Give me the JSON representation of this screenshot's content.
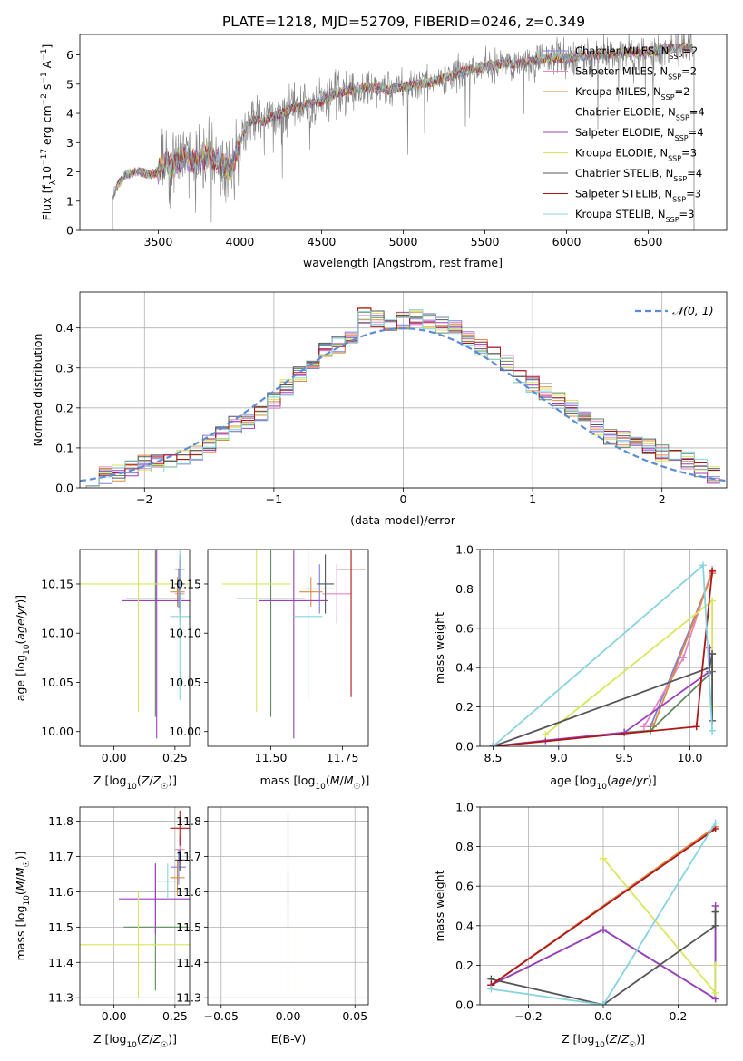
{
  "figure_title": "PLATE=1218, MJD=52709, FIBERID=0246, z=0.349",
  "colors": {
    "Chabrier MILES": "#7f7fd9",
    "Salpeter MILES": "#e687c2",
    "Kroupa MILES": "#d98c3f",
    "Chabrier ELODIE": "#5e8a5e",
    "Salpeter ELODIE": "#9b3fbf",
    "Kroupa ELODIE": "#d9e65a",
    "Chabrier STELIB": "#555555",
    "Salpeter STELIB": "#b01515",
    "Kroupa STELIB": "#86d4e0",
    "data": "#808080",
    "normal": "#5b8bd9"
  },
  "chart_data": [
    {
      "type": "line",
      "xlabel": "wavelength [Angstrom, rest frame]",
      "ylabel": "Flux [f_λ 10^-17 erg cm^-2 s^-1 A^-1]",
      "xlim": [
        3020,
        6980
      ],
      "ylim": [
        0,
        6.7
      ],
      "xticks": [
        3500,
        4000,
        4500,
        5000,
        5500,
        6000,
        6500
      ],
      "yticks": [
        0,
        1,
        2,
        3,
        4,
        5,
        6
      ],
      "legend_position": "right",
      "legend": [
        "Chabrier MILES, N_SSP=2",
        "Salpeter MILES, N_SSP=2",
        "Kroupa MILES, N_SSP=2",
        "Chabrier ELODIE, N_SSP=4",
        "Salpeter ELODIE, N_SSP=4",
        "Kroupa ELODIE, N_SSP=3",
        "Chabrier STELIB, N_SSP=4",
        "Salpeter STELIB, N_SSP=3",
        "Kroupa STELIB, N_SSP=3"
      ],
      "continuum": {
        "x": [
          3220,
          3260,
          3300,
          3350,
          3400,
          3450,
          3500,
          3550,
          3600,
          3650,
          3700,
          3750,
          3800,
          3850,
          3900,
          3950,
          4000,
          4050,
          4100,
          4150,
          4200,
          4300,
          4400,
          4500,
          4600,
          4700,
          4800,
          4900,
          5000,
          5100,
          5200,
          5300,
          5400,
          5500,
          5600,
          5700,
          5800,
          5900,
          6000,
          6100,
          6200,
          6300,
          6400,
          6500,
          6600,
          6700,
          6780
        ],
        "y": [
          1.2,
          1.6,
          1.9,
          2.0,
          2.0,
          1.9,
          2.0,
          2.3,
          2.2,
          2.5,
          2.4,
          2.3,
          2.6,
          2.4,
          2.2,
          2.1,
          3.0,
          3.7,
          3.8,
          3.7,
          3.9,
          4.1,
          4.3,
          4.4,
          4.7,
          4.8,
          4.9,
          4.8,
          4.9,
          5.0,
          5.1,
          5.3,
          5.5,
          5.6,
          5.7,
          5.7,
          5.8,
          5.9,
          5.9,
          5.95,
          6.0,
          6.05,
          6.1,
          6.1,
          6.2,
          6.25,
          6.25
        ]
      }
    },
    {
      "type": "histogram",
      "xlabel": "(data-model)/error",
      "ylabel": "Normed distribution",
      "xlim": [
        -2.5,
        2.5
      ],
      "ylim": [
        0,
        0.49
      ],
      "xticks": [
        -2,
        -1,
        0,
        1,
        2
      ],
      "yticks": [
        0.0,
        0.1,
        0.2,
        0.3,
        0.4
      ],
      "grid": true,
      "legend_position": "top-right",
      "legend": [
        "𝒩(0, 1)"
      ],
      "bin_centers": [
        -2.4,
        -2.3,
        -2.2,
        -2.1,
        -2.0,
        -1.9,
        -1.8,
        -1.7,
        -1.6,
        -1.5,
        -1.4,
        -1.3,
        -1.2,
        -1.1,
        -1.0,
        -0.9,
        -0.8,
        -0.7,
        -0.6,
        -0.5,
        -0.4,
        -0.3,
        -0.2,
        -0.1,
        0.0,
        0.1,
        0.2,
        0.3,
        0.4,
        0.5,
        0.6,
        0.7,
        0.8,
        0.9,
        1.0,
        1.1,
        1.2,
        1.3,
        1.4,
        1.5,
        1.6,
        1.7,
        1.8,
        1.9,
        2.0,
        2.1,
        2.2,
        2.3,
        2.4
      ],
      "bin_values": [
        0.02,
        0.03,
        0.04,
        0.05,
        0.06,
        0.06,
        0.07,
        0.08,
        0.09,
        0.11,
        0.13,
        0.16,
        0.17,
        0.19,
        0.22,
        0.25,
        0.28,
        0.31,
        0.34,
        0.36,
        0.37,
        0.43,
        0.42,
        0.4,
        0.42,
        0.43,
        0.42,
        0.41,
        0.4,
        0.38,
        0.35,
        0.33,
        0.31,
        0.28,
        0.26,
        0.24,
        0.22,
        0.2,
        0.18,
        0.15,
        0.13,
        0.12,
        0.11,
        0.1,
        0.09,
        0.08,
        0.07,
        0.05,
        0.03
      ],
      "normal_curve": {
        "mean": 0,
        "sigma": 1
      }
    },
    {
      "type": "scatter",
      "xlabel": "Z [log10(Z/Z☉)]",
      "ylabel": "age [log10(age/yr)]",
      "xlim": [
        -0.14,
        0.31
      ],
      "ylim": [
        9.985,
        10.185
      ],
      "xticks": [
        0.0,
        0.25
      ],
      "xticklabels": [
        "0.00",
        "0.25"
      ],
      "yticks": [
        10.0,
        10.05,
        10.1,
        10.15
      ],
      "yticklabels": [
        "10.00",
        "10.05",
        "10.10",
        "10.15"
      ],
      "points": [
        {
          "m": "Chabrier MILES",
          "x": 0.265,
          "xerr": 0.03,
          "y": 10.145,
          "yerr": 0.02
        },
        {
          "m": "Salpeter MILES",
          "x": 0.27,
          "xerr": 0.02,
          "y": 10.14,
          "yerr": 0.03
        },
        {
          "m": "Kroupa MILES",
          "x": 0.26,
          "xerr": 0.03,
          "y": 10.142,
          "yerr": 0.015
        },
        {
          "m": "Chabrier ELODIE",
          "x": 0.17,
          "xerr": 0.12,
          "y": 10.135,
          "yerr": 0.12
        },
        {
          "m": "Salpeter ELODIE",
          "x": 0.175,
          "xerr": 0.14,
          "y": 10.133,
          "yerr": 0.14
        },
        {
          "m": "Kroupa ELODIE",
          "x": 0.1,
          "xerr": 0.25,
          "y": 10.15,
          "yerr": 0.13
        },
        {
          "m": "Chabrier STELIB",
          "x": 0.27,
          "xerr": 0.02,
          "y": 10.15,
          "yerr": 0.03
        },
        {
          "m": "Salpeter STELIB",
          "x": 0.27,
          "xerr": 0.02,
          "y": 10.165,
          "yerr": 0.01
        },
        {
          "m": "Kroupa STELIB",
          "x": 0.27,
          "xerr": 0.04,
          "y": 10.117,
          "yerr": 0.085
        }
      ]
    },
    {
      "type": "scatter",
      "xlabel": "mass [log10(M/M☉)]",
      "ylabel": "",
      "xlim": [
        11.28,
        11.84
      ],
      "ylim": [
        9.985,
        10.185
      ],
      "xticks": [
        11.5,
        11.75
      ],
      "xticklabels": [
        "11.50",
        "11.75"
      ],
      "yticks": [
        10.0,
        10.05,
        10.1,
        10.15
      ],
      "yticklabels": [
        "10.00",
        "10.05",
        "10.10",
        "10.15"
      ],
      "points": [
        {
          "m": "Chabrier MILES",
          "x": 11.67,
          "xerr": 0.05,
          "y": 10.145,
          "yerr": 0.025
        },
        {
          "m": "Salpeter MILES",
          "x": 11.73,
          "xerr": 0.05,
          "y": 10.14,
          "yerr": 0.03
        },
        {
          "m": "Kroupa MILES",
          "x": 11.64,
          "xerr": 0.04,
          "y": 10.142,
          "yerr": 0.015
        },
        {
          "m": "Chabrier ELODIE",
          "x": 11.5,
          "xerr": 0.12,
          "y": 10.135,
          "yerr": 0.12
        },
        {
          "m": "Salpeter ELODIE",
          "x": 11.58,
          "xerr": 0.12,
          "y": 10.133,
          "yerr": 0.14
        },
        {
          "m": "Kroupa ELODIE",
          "x": 11.45,
          "xerr": 0.12,
          "y": 10.15,
          "yerr": 0.13
        },
        {
          "m": "Chabrier STELIB",
          "x": 11.69,
          "xerr": 0.03,
          "y": 10.15,
          "yerr": 0.03
        },
        {
          "m": "Salpeter STELIB",
          "x": 11.78,
          "xerr": 0.05,
          "y": 10.165,
          "yerr": 0.13
        },
        {
          "m": "Kroupa STELIB",
          "x": 11.63,
          "xerr": 0.05,
          "y": 10.117,
          "yerr": 0.085
        }
      ]
    },
    {
      "type": "line",
      "xlabel": "age [log10(age/yr)]",
      "ylabel": "mass weight",
      "xlim": [
        8.4,
        10.28
      ],
      "ylim": [
        0,
        1.0
      ],
      "xticks": [
        8.5,
        9.0,
        9.5,
        10.0
      ],
      "yticks": [
        0.0,
        0.2,
        0.4,
        0.6,
        0.8,
        1.0
      ],
      "grid": true,
      "series": [
        {
          "m": "Chabrier MILES",
          "x": [
            9.7,
            10.17
          ],
          "y": [
            0.1,
            0.88
          ]
        },
        {
          "m": "Salpeter MILES",
          "x": [
            9.65,
            9.95,
            10.17
          ],
          "y": [
            0.1,
            0.45,
            0.9
          ]
        },
        {
          "m": "Kroupa MILES",
          "x": [
            9.72,
            10.17
          ],
          "y": [
            0.1,
            0.88
          ]
        },
        {
          "m": "Chabrier ELODIE",
          "x": [
            8.5,
            9.5,
            9.7,
            10.17,
            10.17
          ],
          "y": [
            0.0,
            0.07,
            0.08,
            0.38,
            0.47
          ]
        },
        {
          "m": "Salpeter ELODIE",
          "x": [
            8.5,
            8.9,
            9.5,
            10.15,
            10.15
          ],
          "y": [
            0.0,
            0.03,
            0.07,
            0.38,
            0.5
          ]
        },
        {
          "m": "Kroupa ELODIE",
          "x": [
            8.9,
            10.17,
            10.17
          ],
          "y": [
            0.06,
            0.74,
            0.2
          ]
        },
        {
          "m": "Chabrier STELIB",
          "x": [
            8.5,
            10.15,
            10.17,
            10.17
          ],
          "y": [
            0.0,
            0.4,
            0.47,
            0.13
          ]
        },
        {
          "m": "Salpeter STELIB",
          "x": [
            8.5,
            10.05,
            10.17
          ],
          "y": [
            0.0,
            0.1,
            0.89
          ]
        },
        {
          "m": "Kroupa STELIB",
          "x": [
            8.5,
            10.1,
            10.17,
            10.17
          ],
          "y": [
            0.0,
            0.92,
            0.08,
            0.08
          ]
        }
      ]
    },
    {
      "type": "scatter",
      "xlabel": "Z [log10(Z/Z☉)]",
      "ylabel": "mass [log10(M/M☉)]",
      "xlim": [
        -0.14,
        0.31
      ],
      "ylim": [
        11.28,
        11.84
      ],
      "xticks": [
        0.0,
        0.25
      ],
      "xticklabels": [
        "0.00",
        "0.25"
      ],
      "yticks": [
        11.3,
        11.4,
        11.5,
        11.6,
        11.7,
        11.8
      ],
      "yticklabels": [
        "11.3",
        "11.4",
        "11.5",
        "11.6",
        "11.7",
        "11.8"
      ],
      "points": [
        {
          "m": "Chabrier MILES",
          "x": 0.265,
          "xerr": 0.03,
          "y": 11.67,
          "yerr": 0.05
        },
        {
          "m": "Salpeter MILES",
          "x": 0.27,
          "xerr": 0.02,
          "y": 11.72,
          "yerr": 0.04
        },
        {
          "m": "Kroupa MILES",
          "x": 0.26,
          "xerr": 0.03,
          "y": 11.64,
          "yerr": 0.05
        },
        {
          "m": "Chabrier ELODIE",
          "x": 0.17,
          "xerr": 0.13,
          "y": 11.5,
          "yerr": 0.18
        },
        {
          "m": "Salpeter ELODIE",
          "x": 0.17,
          "xerr": 0.15,
          "y": 11.58,
          "yerr": 0.1
        },
        {
          "m": "Kroupa ELODIE",
          "x": 0.1,
          "xerr": 0.25,
          "y": 11.45,
          "yerr": 0.15
        },
        {
          "m": "Chabrier STELIB",
          "x": 0.27,
          "xerr": 0.02,
          "y": 11.69,
          "yerr": 0.03
        },
        {
          "m": "Salpeter STELIB",
          "x": 0.27,
          "xerr": 0.04,
          "y": 11.78,
          "yerr": 0.05
        },
        {
          "m": "Kroupa STELIB",
          "x": 0.22,
          "xerr": 0.05,
          "y": 11.63,
          "yerr": 0.05
        }
      ]
    },
    {
      "type": "scatter",
      "xlabel": "E(B-V)",
      "ylabel": "",
      "xlim": [
        -0.06,
        0.06
      ],
      "ylim": [
        11.28,
        11.84
      ],
      "xticks": [
        -0.05,
        0.0,
        0.05
      ],
      "xticklabels": [
        "−0.05",
        "0.00",
        "0.05"
      ],
      "yticks": [
        11.3,
        11.4,
        11.5,
        11.6,
        11.7,
        11.8
      ],
      "yticklabels": [
        "11.3",
        "11.4",
        "11.5",
        "11.6",
        "11.7",
        "11.8"
      ],
      "points": [
        {
          "m": "Kroupa ELODIE",
          "x": 0.0,
          "xerr": 0.0,
          "y": 11.45,
          "yerr": 0.15
        },
        {
          "m": "Salpeter ELODIE",
          "x": 0.0,
          "xerr": 0.0,
          "y": 11.58,
          "yerr": 0.08
        },
        {
          "m": "Kroupa STELIB",
          "x": 0.0,
          "xerr": 0.0,
          "y": 11.63,
          "yerr": 0.08
        },
        {
          "m": "Salpeter STELIB",
          "x": 0.0,
          "xerr": 0.0,
          "y": 11.76,
          "yerr": 0.06
        }
      ]
    },
    {
      "type": "line",
      "xlabel": "Z [log10(Z/Z☉)]",
      "ylabel": "mass weight",
      "xlim": [
        -0.33,
        0.33
      ],
      "ylim": [
        0,
        1.0
      ],
      "xticks": [
        -0.2,
        0.0,
        0.2
      ],
      "xticklabels": [
        "−0.2",
        "0.0",
        "0.2"
      ],
      "yticks": [
        0.0,
        0.2,
        0.4,
        0.6,
        0.8,
        1.0
      ],
      "grid": true,
      "series": [
        {
          "m": "Chabrier MILES",
          "x": [
            -0.3,
            0.3
          ],
          "y": [
            0.1,
            0.9
          ]
        },
        {
          "m": "Salpeter MILES",
          "x": [
            -0.3,
            0.3
          ],
          "y": [
            0.1,
            0.9
          ]
        },
        {
          "m": "Kroupa MILES",
          "x": [
            -0.3,
            0.3
          ],
          "y": [
            0.1,
            0.9
          ]
        },
        {
          "m": "Chabrier ELODIE",
          "x": [
            -0.3,
            0.0,
            0.3,
            0.3
          ],
          "y": [
            0.1,
            0.38,
            0.03,
            0.47
          ]
        },
        {
          "m": "Salpeter ELODIE",
          "x": [
            -0.3,
            0.0,
            0.3,
            0.3
          ],
          "y": [
            0.1,
            0.38,
            0.03,
            0.5
          ]
        },
        {
          "m": "Kroupa ELODIE",
          "x": [
            0.0,
            0.3,
            0.3
          ],
          "y": [
            0.74,
            0.06,
            0.2
          ]
        },
        {
          "m": "Chabrier STELIB",
          "x": [
            -0.3,
            0.0,
            0.3,
            0.3
          ],
          "y": [
            0.13,
            0.0,
            0.4,
            0.47
          ]
        },
        {
          "m": "Salpeter STELIB",
          "x": [
            -0.3,
            0.3
          ],
          "y": [
            0.1,
            0.89
          ]
        },
        {
          "m": "Kroupa STELIB",
          "x": [
            -0.3,
            0.0,
            0.3
          ],
          "y": [
            0.08,
            0.0,
            0.92
          ]
        }
      ]
    }
  ]
}
